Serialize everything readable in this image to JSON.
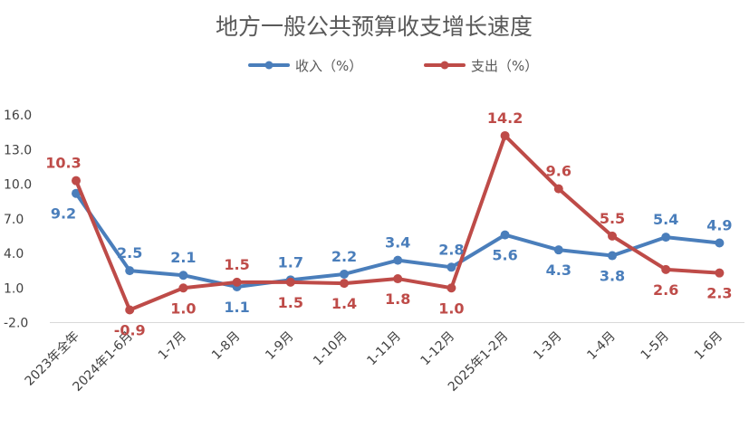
{
  "chart_data": {
    "type": "line",
    "title": "地方一般公共预算收支增长速度",
    "categories": [
      "2023年全年",
      "2024年1-6月",
      "1-7月",
      "1-8月",
      "1-9月",
      "1-10月",
      "1-11月",
      "1-12月",
      "2025年1-2月",
      "1-3月",
      "1-4月",
      "1-5月",
      "1-6月"
    ],
    "series": [
      {
        "name": "收入（%）",
        "color": "#4a7ebb",
        "values": [
          9.2,
          2.5,
          2.1,
          1.1,
          1.7,
          2.2,
          3.4,
          2.8,
          5.6,
          4.3,
          3.8,
          5.4,
          4.9
        ],
        "labels": [
          "9.2",
          "2.5",
          "2.1",
          "1.1",
          "1.7",
          "2.2",
          "3.4",
          "2.8",
          "5.6",
          "4.3",
          "3.8",
          "5.4",
          "4.9"
        ]
      },
      {
        "name": "支出（%）",
        "color": "#be4b48",
        "values": [
          10.3,
          -0.9,
          1.0,
          1.5,
          1.5,
          1.4,
          1.8,
          1.0,
          14.2,
          9.6,
          5.5,
          2.6,
          2.3
        ],
        "labels": [
          "10.3",
          "-0.9",
          "1.0",
          "1.5",
          "1.5",
          "1.4",
          "1.8",
          "1.0",
          "14.2",
          "9.6",
          "5.5",
          "2.6",
          "2.3"
        ]
      }
    ],
    "yticks": [
      "-2.0",
      "1.0",
      "4.0",
      "7.0",
      "10.0",
      "13.0",
      "16.0"
    ],
    "ylim": [
      -2,
      16
    ],
    "grid": false,
    "legend": "top-center",
    "xlabel": "",
    "ylabel": ""
  }
}
